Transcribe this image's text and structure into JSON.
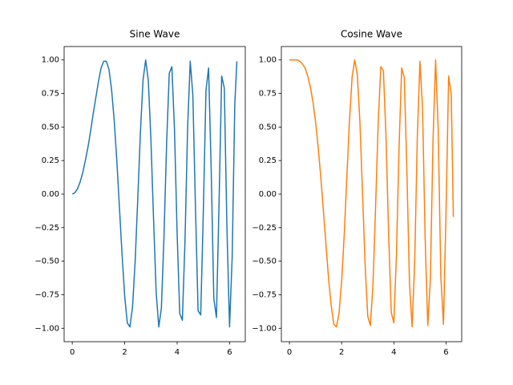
{
  "chart_data": [
    {
      "type": "line",
      "title": "Sine Wave",
      "x": [
        0,
        0.1,
        0.2,
        0.3,
        0.4,
        0.5,
        0.6,
        0.7,
        0.8,
        0.9,
        1.0,
        1.1,
        1.2,
        1.3,
        1.4,
        1.5,
        1.6,
        1.7,
        1.8,
        1.9,
        2.0,
        2.1,
        2.2,
        2.3,
        2.4,
        2.5,
        2.6,
        2.7,
        2.8,
        2.9,
        3.0,
        3.1,
        3.2,
        3.3,
        3.4,
        3.5,
        3.6,
        3.7,
        3.8,
        3.9,
        4.0,
        4.1,
        4.2,
        4.3,
        4.4,
        4.5,
        4.6,
        4.7,
        4.8,
        4.9,
        5.0,
        5.1,
        5.2,
        5.3,
        5.4,
        5.5,
        5.6,
        5.7,
        5.8,
        5.9,
        6.0,
        6.1,
        6.2,
        6.28
      ],
      "series": [
        {
          "color": "#1f77b4",
          "values": [
            0,
            0.01,
            0.04,
            0.09,
            0.16,
            0.25,
            0.35,
            0.47,
            0.6,
            0.72,
            0.84,
            0.94,
            0.99,
            0.99,
            0.93,
            0.78,
            0.55,
            0.25,
            -0.1,
            -0.45,
            -0.76,
            -0.96,
            -0.99,
            -0.84,
            -0.5,
            -0.03,
            0.46,
            0.85,
            1.0,
            0.85,
            0.41,
            -0.18,
            -0.73,
            -0.99,
            -0.85,
            -0.31,
            0.38,
            0.9,
            0.95,
            0.48,
            -0.29,
            -0.89,
            -0.94,
            -0.35,
            0.49,
            0.99,
            0.74,
            -0.1,
            -0.87,
            -0.9,
            -0.13,
            0.77,
            0.94,
            0.18,
            -0.78,
            -0.92,
            -0.06,
            0.88,
            0.79,
            -0.25,
            -0.99,
            -0.47,
            0.67,
            0.99
          ]
        }
      ],
      "xlim": [
        -0.31,
        6.6
      ],
      "xticks": [
        0,
        2,
        4,
        6
      ],
      "ylim": [
        -1.1,
        1.1
      ],
      "yticks": [
        {
          "value": -1,
          "label": "−1.00"
        },
        {
          "value": -0.75,
          "label": "−0.75"
        },
        {
          "value": -0.5,
          "label": "−0.50"
        },
        {
          "value": -0.25,
          "label": "−0.25"
        },
        {
          "value": 0,
          "label": "0.00"
        },
        {
          "value": 0.25,
          "label": "0.25"
        },
        {
          "value": 0.5,
          "label": "0.50"
        },
        {
          "value": 0.75,
          "label": "0.75"
        },
        {
          "value": 1,
          "label": "1.00"
        }
      ]
    },
    {
      "type": "line",
      "title": "Cosine Wave",
      "x": [
        0,
        0.1,
        0.2,
        0.3,
        0.4,
        0.5,
        0.6,
        0.7,
        0.8,
        0.9,
        1.0,
        1.1,
        1.2,
        1.3,
        1.4,
        1.5,
        1.6,
        1.7,
        1.8,
        1.9,
        2.0,
        2.1,
        2.2,
        2.3,
        2.4,
        2.5,
        2.6,
        2.7,
        2.8,
        2.9,
        3.0,
        3.1,
        3.2,
        3.3,
        3.4,
        3.5,
        3.6,
        3.7,
        3.8,
        3.9,
        4.0,
        4.1,
        4.2,
        4.3,
        4.4,
        4.5,
        4.6,
        4.7,
        4.8,
        4.9,
        5.0,
        5.1,
        5.2,
        5.3,
        5.4,
        5.5,
        5.6,
        5.7,
        5.8,
        5.9,
        6.0,
        6.1,
        6.2,
        6.28
      ],
      "series": [
        {
          "color": "#ff7f0e",
          "values": [
            1,
            1,
            1,
            1,
            0.99,
            0.97,
            0.94,
            0.88,
            0.8,
            0.69,
            0.54,
            0.35,
            0.13,
            -0.12,
            -0.38,
            -0.63,
            -0.83,
            -0.97,
            -0.99,
            -0.89,
            -0.65,
            -0.3,
            0.13,
            0.55,
            0.87,
            1.0,
            0.89,
            0.54,
            0.01,
            -0.53,
            -0.91,
            -0.98,
            -0.68,
            -0.1,
            0.53,
            0.95,
            0.92,
            0.43,
            -0.3,
            -0.88,
            -0.96,
            -0.45,
            0.35,
            0.94,
            0.87,
            0.17,
            -0.67,
            -0.99,
            -0.5,
            0.43,
            0.99,
            0.64,
            -0.33,
            -0.98,
            -0.63,
            0.39,
            1.0,
            0.48,
            -0.61,
            -0.97,
            -0.13,
            0.88,
            0.74,
            -0.17
          ]
        }
      ],
      "xlim": [
        -0.31,
        6.6
      ],
      "xticks": [
        0,
        2,
        4,
        6
      ],
      "ylim": [
        -1.1,
        1.1
      ],
      "yticks": [
        {
          "value": -1,
          "label": "−1.00"
        },
        {
          "value": -0.75,
          "label": "−0.75"
        },
        {
          "value": -0.5,
          "label": "−0.50"
        },
        {
          "value": -0.25,
          "label": "−0.25"
        },
        {
          "value": 0,
          "label": "0.00"
        },
        {
          "value": 0.25,
          "label": "0.25"
        },
        {
          "value": 0.5,
          "label": "0.50"
        },
        {
          "value": 0.75,
          "label": "0.75"
        },
        {
          "value": 1,
          "label": "1.00"
        }
      ]
    }
  ]
}
